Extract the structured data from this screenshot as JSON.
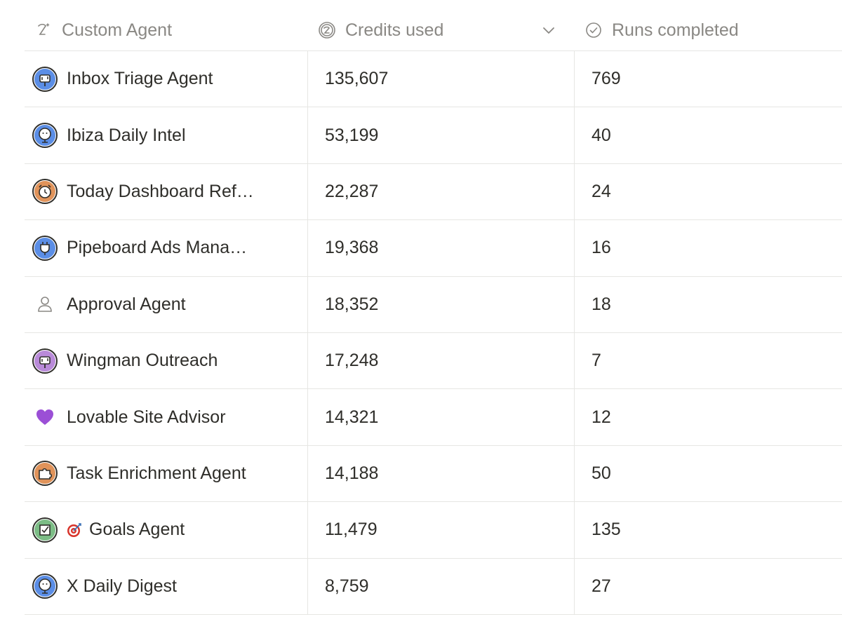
{
  "header": {
    "col_agent": "Custom Agent",
    "col_credits": "Credits used",
    "col_runs": "Runs completed",
    "icons": {
      "agent": "agent-sparkle-icon",
      "credits": "credits-coin-icon",
      "runs": "check-circle-icon",
      "sort": "chevron-down-icon"
    }
  },
  "rows": [
    {
      "name": "Inbox Triage Agent",
      "credits": "135,607",
      "runs": "769",
      "icon": "mailbox-icon",
      "icon_color": "#5b8ee6"
    },
    {
      "name": "Ibiza Daily Intel",
      "credits": "53,199",
      "runs": "40",
      "icon": "globe-face-icon",
      "icon_color": "#5b8ee6"
    },
    {
      "name": "Today Dashboard Ref…",
      "credits": "22,287",
      "runs": "24",
      "icon": "alarm-clock-icon",
      "icon_color": "#e0935a"
    },
    {
      "name": "Pipeboard Ads Mana…",
      "credits": "19,368",
      "runs": "16",
      "icon": "plug-icon",
      "icon_color": "#5b8ee6"
    },
    {
      "name": "Approval Agent",
      "credits": "18,352",
      "runs": "18",
      "icon": "person-icon",
      "icon_color": "#8a8884"
    },
    {
      "name": "Wingman Outreach",
      "credits": "17,248",
      "runs": "7",
      "icon": "mailbox-icon",
      "icon_color": "#b98ad9"
    },
    {
      "name": "Lovable Site Advisor",
      "credits": "14,321",
      "runs": "12",
      "icon": "purple-heart-icon",
      "icon_color": "#9b4fd6"
    },
    {
      "name": "Task Enrichment Agent",
      "credits": "14,188",
      "runs": "50",
      "icon": "puzzle-icon",
      "icon_color": "#e0935a"
    },
    {
      "name": "Goals Agent",
      "credits": "11,479",
      "runs": "135",
      "icon": "checkbox-icon",
      "icon_color": "#7cbd86",
      "name_prefix_icon": "target-icon"
    },
    {
      "name": "X Daily Digest",
      "credits": "8,759",
      "runs": "27",
      "icon": "globe-face-icon",
      "icon_color": "#5b8ee6"
    }
  ]
}
